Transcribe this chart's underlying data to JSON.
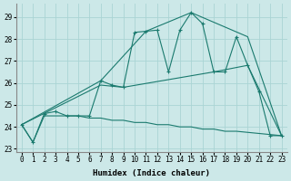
{
  "xlabel": "Humidex (Indice chaleur)",
  "bg_color": "#cce8e8",
  "grid_color": "#aad4d4",
  "line_color": "#1a7a6e",
  "xlim": [
    -0.5,
    23.5
  ],
  "ylim": [
    22.85,
    29.6
  ],
  "yticks": [
    23,
    24,
    25,
    26,
    27,
    28,
    29
  ],
  "xticks": [
    0,
    1,
    2,
    3,
    4,
    5,
    6,
    7,
    8,
    9,
    10,
    11,
    12,
    13,
    14,
    15,
    16,
    17,
    18,
    19,
    20,
    21,
    22,
    23
  ],
  "lines": [
    {
      "x": [
        0,
        1,
        2,
        3,
        4,
        5,
        6,
        7,
        8,
        9,
        10,
        11,
        12,
        13,
        14,
        15,
        16,
        17,
        18,
        19,
        20,
        21,
        22,
        23
      ],
      "y": [
        24.1,
        23.3,
        24.6,
        24.7,
        24.5,
        24.5,
        24.5,
        26.1,
        25.9,
        25.8,
        28.3,
        28.35,
        28.4,
        26.5,
        28.4,
        29.2,
        28.7,
        26.5,
        26.5,
        28.1,
        26.8,
        25.6,
        23.6,
        23.6
      ],
      "marker": "+"
    },
    {
      "x": [
        0,
        7,
        11,
        15,
        20,
        23
      ],
      "y": [
        24.1,
        26.1,
        28.35,
        29.2,
        28.1,
        23.6
      ],
      "marker": null
    },
    {
      "x": [
        0,
        7,
        9,
        17,
        20,
        23
      ],
      "y": [
        24.1,
        25.9,
        25.8,
        26.5,
        26.8,
        23.6
      ],
      "marker": null
    },
    {
      "x": [
        0,
        1,
        2,
        3,
        4,
        5,
        6,
        7,
        8,
        9,
        10,
        11,
        12,
        13,
        14,
        15,
        16,
        17,
        18,
        19,
        20,
        21,
        22,
        23
      ],
      "y": [
        24.1,
        23.3,
        24.5,
        24.5,
        24.5,
        24.5,
        24.4,
        24.4,
        24.3,
        24.3,
        24.2,
        24.2,
        24.1,
        24.1,
        24.0,
        24.0,
        23.9,
        23.9,
        23.8,
        23.8,
        23.75,
        23.7,
        23.65,
        23.6
      ],
      "marker": null
    }
  ]
}
